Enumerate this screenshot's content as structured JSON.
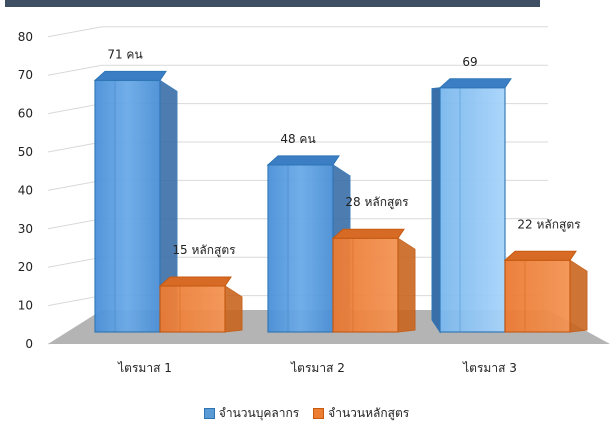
{
  "chart_data": {
    "type": "bar",
    "style": "3d-clustered-column",
    "categories": [
      "ไตรมาส 1",
      "ไตรมาส 2",
      "ไตรมาส 3"
    ],
    "series": [
      {
        "name": "จำนวนบุคลากร",
        "values": [
          71,
          48,
          69
        ],
        "labels": [
          "71 คน",
          "48 คน",
          "69"
        ],
        "color": "#5b9bd5"
      },
      {
        "name": "จำนวนหลักสูตร",
        "values": [
          15,
          28,
          22
        ],
        "labels": [
          "15 หลักสูตร",
          "28 หลักสูตร",
          "22 หลักสูตร"
        ],
        "color": "#ed7d31"
      }
    ],
    "yticks": [
      "0",
      "10",
      "20",
      "30",
      "40",
      "50",
      "60",
      "70",
      "80"
    ],
    "ylim": [
      0,
      80
    ],
    "grid": true,
    "legend_position": "bottom"
  }
}
